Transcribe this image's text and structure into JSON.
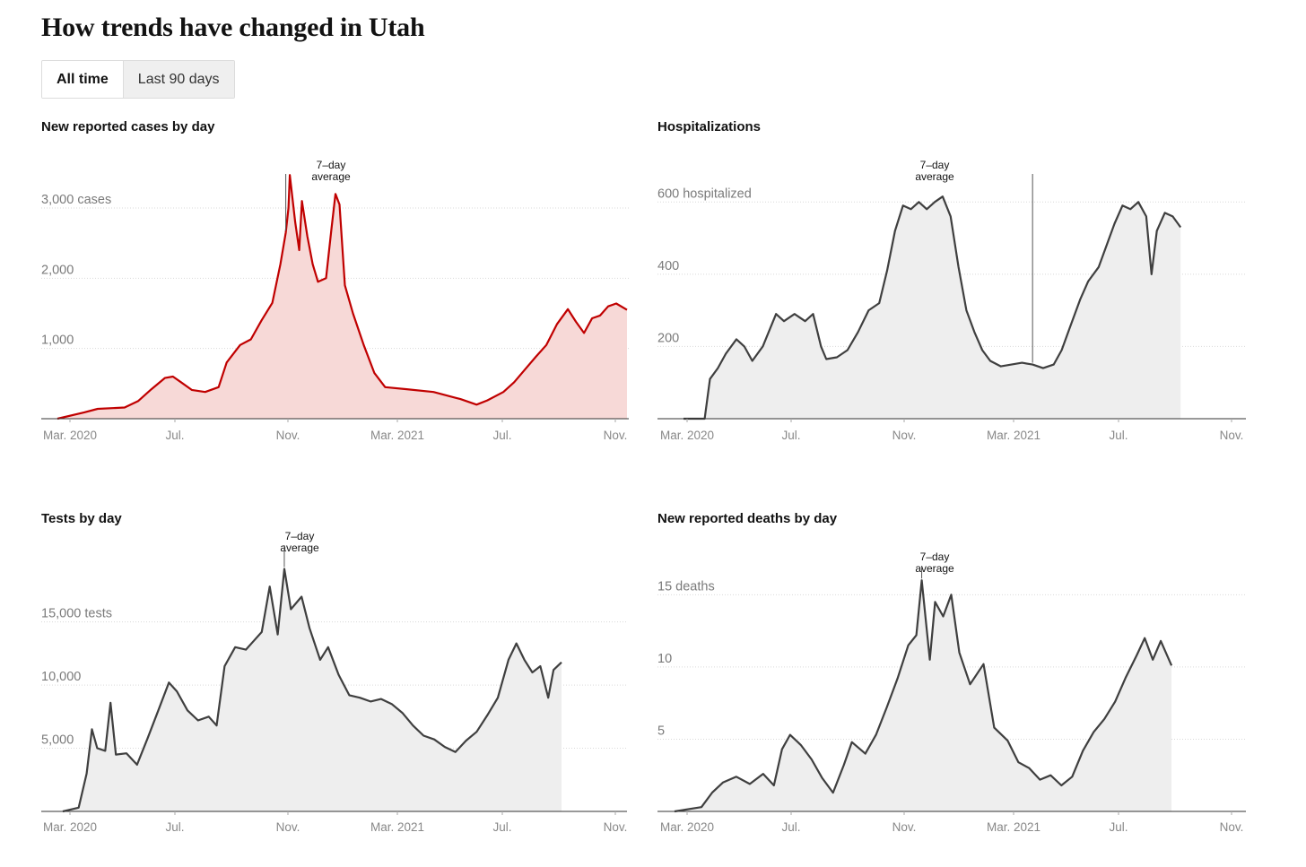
{
  "page": {
    "title": "How trends have changed in Utah",
    "toggle": {
      "all_time": "All time",
      "last_90": "Last 90 days",
      "selected": "All time"
    }
  },
  "colors": {
    "cases_line": "#c00000",
    "cases_fill": "#f7d9d7",
    "gray_line": "#3f3f3f",
    "gray_fill": "#eeeeee",
    "grid": "#d9d9d9",
    "axis": "#333333"
  },
  "chart_data": [
    {
      "id": "cases",
      "type": "area",
      "title": "New reported cases by day",
      "annotation": "7-day average",
      "x_ticks": [
        "Mar. 2020",
        "Jul.",
        "Nov.",
        "Mar. 2021",
        "Jul.",
        "Nov."
      ],
      "y_ticks": [
        {
          "value": 1000,
          "label": "1,000"
        },
        {
          "value": 2000,
          "label": "2,000"
        },
        {
          "value": 3000,
          "label": "3,000 cases"
        }
      ],
      "ylim": [
        0,
        3600
      ],
      "xlim": [
        0,
        21.2
      ],
      "points": [
        [
          0,
          0
        ],
        [
          1,
          90
        ],
        [
          1.5,
          140
        ],
        [
          2.5,
          160
        ],
        [
          3,
          250
        ],
        [
          3.5,
          420
        ],
        [
          4,
          580
        ],
        [
          4.3,
          600
        ],
        [
          4.6,
          520
        ],
        [
          5,
          410
        ],
        [
          5.5,
          380
        ],
        [
          6,
          450
        ],
        [
          6.3,
          800
        ],
        [
          6.8,
          1050
        ],
        [
          7.2,
          1130
        ],
        [
          7.6,
          1400
        ],
        [
          8,
          1650
        ],
        [
          8.3,
          2200
        ],
        [
          8.5,
          2650
        ],
        [
          8.6,
          3000
        ],
        [
          8.65,
          3470
        ],
        [
          8.85,
          2800
        ],
        [
          9.0,
          2400
        ],
        [
          9.1,
          3100
        ],
        [
          9.3,
          2600
        ],
        [
          9.5,
          2200
        ],
        [
          9.7,
          1950
        ],
        [
          10.0,
          2000
        ],
        [
          10.2,
          2700
        ],
        [
          10.35,
          3200
        ],
        [
          10.5,
          3050
        ],
        [
          10.7,
          1900
        ],
        [
          11,
          1500
        ],
        [
          11.4,
          1050
        ],
        [
          11.8,
          650
        ],
        [
          12.2,
          450
        ],
        [
          13,
          420
        ],
        [
          14,
          380
        ],
        [
          15,
          280
        ],
        [
          15.6,
          200
        ],
        [
          16,
          260
        ],
        [
          16.6,
          380
        ],
        [
          17,
          520
        ],
        [
          17.4,
          700
        ],
        [
          17.8,
          880
        ],
        [
          18.2,
          1050
        ],
        [
          18.6,
          1350
        ],
        [
          19,
          1560
        ],
        [
          19.3,
          1380
        ],
        [
          19.6,
          1220
        ],
        [
          19.9,
          1430
        ],
        [
          20.2,
          1470
        ],
        [
          20.5,
          1600
        ],
        [
          20.8,
          1640
        ],
        [
          21.2,
          1550
        ]
      ]
    },
    {
      "id": "hospitalizations",
      "type": "area",
      "title": "Hospitalizations",
      "annotation": "7-day average",
      "x_ticks": [
        "Mar. 2020",
        "Jul.",
        "Nov.",
        "Mar. 2021",
        "Jul.",
        "Nov."
      ],
      "y_ticks": [
        {
          "value": 200,
          "label": "200"
        },
        {
          "value": 400,
          "label": "400"
        },
        {
          "value": 600,
          "label": "600 hospitalized"
        }
      ],
      "ylim": [
        0,
        700
      ],
      "xlim": [
        0,
        21.2
      ],
      "points": [
        [
          0,
          0
        ],
        [
          0.8,
          0
        ],
        [
          1,
          110
        ],
        [
          1.3,
          140
        ],
        [
          1.6,
          180
        ],
        [
          2,
          220
        ],
        [
          2.3,
          200
        ],
        [
          2.6,
          160
        ],
        [
          3,
          200
        ],
        [
          3.5,
          290
        ],
        [
          3.8,
          270
        ],
        [
          4.2,
          290
        ],
        [
          4.6,
          270
        ],
        [
          4.9,
          290
        ],
        [
          5.2,
          200
        ],
        [
          5.4,
          165
        ],
        [
          5.8,
          170
        ],
        [
          6.2,
          190
        ],
        [
          6.6,
          240
        ],
        [
          7,
          300
        ],
        [
          7.4,
          320
        ],
        [
          7.7,
          410
        ],
        [
          8,
          520
        ],
        [
          8.3,
          590
        ],
        [
          8.6,
          580
        ],
        [
          8.9,
          600
        ],
        [
          9.2,
          580
        ],
        [
          9.5,
          600
        ],
        [
          9.8,
          615
        ],
        [
          10.1,
          560
        ],
        [
          10.4,
          420
        ],
        [
          10.7,
          300
        ],
        [
          11,
          240
        ],
        [
          11.3,
          190
        ],
        [
          11.6,
          160
        ],
        [
          12,
          145
        ],
        [
          12.4,
          150
        ],
        [
          12.8,
          155
        ],
        [
          13.2,
          150
        ],
        [
          13.6,
          140
        ],
        [
          14,
          150
        ],
        [
          14.3,
          190
        ],
        [
          14.6,
          250
        ],
        [
          15,
          330
        ],
        [
          15.3,
          380
        ],
        [
          15.7,
          420
        ],
        [
          16,
          480
        ],
        [
          16.3,
          540
        ],
        [
          16.6,
          590
        ],
        [
          16.9,
          580
        ],
        [
          17.2,
          600
        ],
        [
          17.5,
          560
        ],
        [
          17.7,
          400
        ],
        [
          17.9,
          520
        ],
        [
          18.2,
          570
        ],
        [
          18.5,
          560
        ],
        [
          18.8,
          530
        ]
      ]
    },
    {
      "id": "tests",
      "type": "area",
      "title": "Tests by day",
      "annotation": "7-day average",
      "x_ticks": [
        "Mar. 2020",
        "Jul.",
        "Nov.",
        "Mar. 2021",
        "Jul.",
        "Nov."
      ],
      "y_ticks": [
        {
          "value": 5000,
          "label": "5,000"
        },
        {
          "value": 10000,
          "label": "10,000"
        },
        {
          "value": 15000,
          "label": "15,000 tests"
        }
      ],
      "ylim": [
        0,
        22000
      ],
      "xlim": [
        0,
        21.2
      ],
      "points": [
        [
          0,
          0
        ],
        [
          0.6,
          300
        ],
        [
          0.9,
          3000
        ],
        [
          1.1,
          6500
        ],
        [
          1.3,
          5000
        ],
        [
          1.6,
          4800
        ],
        [
          1.8,
          8600
        ],
        [
          2,
          4500
        ],
        [
          2.4,
          4600
        ],
        [
          2.8,
          3700
        ],
        [
          3.2,
          5800
        ],
        [
          3.6,
          8000
        ],
        [
          4,
          10200
        ],
        [
          4.3,
          9500
        ],
        [
          4.7,
          8000
        ],
        [
          5.1,
          7200
        ],
        [
          5.5,
          7500
        ],
        [
          5.8,
          6800
        ],
        [
          6.1,
          11500
        ],
        [
          6.5,
          13000
        ],
        [
          6.9,
          12800
        ],
        [
          7.2,
          13500
        ],
        [
          7.5,
          14200
        ],
        [
          7.8,
          17800
        ],
        [
          8.1,
          14000
        ],
        [
          8.35,
          19200
        ],
        [
          8.6,
          16000
        ],
        [
          9,
          17000
        ],
        [
          9.3,
          14500
        ],
        [
          9.7,
          12000
        ],
        [
          10,
          13000
        ],
        [
          10.4,
          10800
        ],
        [
          10.8,
          9200
        ],
        [
          11.2,
          9000
        ],
        [
          11.6,
          8700
        ],
        [
          12,
          8900
        ],
        [
          12.4,
          8500
        ],
        [
          12.8,
          7800
        ],
        [
          13.2,
          6800
        ],
        [
          13.6,
          6000
        ],
        [
          14,
          5700
        ],
        [
          14.4,
          5100
        ],
        [
          14.8,
          4700
        ],
        [
          15.2,
          5600
        ],
        [
          15.6,
          6300
        ],
        [
          16,
          7600
        ],
        [
          16.4,
          9000
        ],
        [
          16.8,
          12000
        ],
        [
          17.1,
          13300
        ],
        [
          17.4,
          12000
        ],
        [
          17.7,
          11000
        ],
        [
          18,
          11500
        ],
        [
          18.3,
          9000
        ],
        [
          18.5,
          11200
        ],
        [
          18.8,
          11800
        ]
      ]
    },
    {
      "id": "deaths",
      "type": "area",
      "title": "New reported deaths by day",
      "annotation": "7-day average",
      "x_ticks": [
        "Mar. 2020",
        "Jul.",
        "Nov.",
        "Mar. 2021",
        "Jul.",
        "Nov."
      ],
      "y_ticks": [
        {
          "value": 5,
          "label": "5"
        },
        {
          "value": 10,
          "label": "10"
        },
        {
          "value": 15,
          "label": "15 deaths"
        }
      ],
      "ylim": [
        0,
        18
      ],
      "xlim": [
        0,
        21.2
      ],
      "points": [
        [
          0,
          0
        ],
        [
          1,
          0.3
        ],
        [
          1.4,
          1.3
        ],
        [
          1.8,
          2.0
        ],
        [
          2.3,
          2.4
        ],
        [
          2.8,
          1.9
        ],
        [
          3.3,
          2.6
        ],
        [
          3.7,
          1.8
        ],
        [
          4,
          4.3
        ],
        [
          4.3,
          5.3
        ],
        [
          4.7,
          4.6
        ],
        [
          5.1,
          3.6
        ],
        [
          5.5,
          2.3
        ],
        [
          5.9,
          1.3
        ],
        [
          6.3,
          3.2
        ],
        [
          6.6,
          4.8
        ],
        [
          7.1,
          4.0
        ],
        [
          7.5,
          5.3
        ],
        [
          7.9,
          7.2
        ],
        [
          8.3,
          9.2
        ],
        [
          8.7,
          11.5
        ],
        [
          9.0,
          12.2
        ],
        [
          9.2,
          16.0
        ],
        [
          9.5,
          10.5
        ],
        [
          9.7,
          14.5
        ],
        [
          10.0,
          13.5
        ],
        [
          10.3,
          15.0
        ],
        [
          10.6,
          11.0
        ],
        [
          11.0,
          8.8
        ],
        [
          11.5,
          10.2
        ],
        [
          11.9,
          5.8
        ],
        [
          12.4,
          4.9
        ],
        [
          12.8,
          3.4
        ],
        [
          13.2,
          3.0
        ],
        [
          13.6,
          2.2
        ],
        [
          14,
          2.5
        ],
        [
          14.4,
          1.8
        ],
        [
          14.8,
          2.4
        ],
        [
          15.2,
          4.2
        ],
        [
          15.6,
          5.5
        ],
        [
          16,
          6.4
        ],
        [
          16.4,
          7.6
        ],
        [
          16.8,
          9.3
        ],
        [
          17.2,
          10.8
        ],
        [
          17.5,
          12.0
        ],
        [
          17.8,
          10.5
        ],
        [
          18.1,
          11.8
        ],
        [
          18.5,
          10.1
        ]
      ]
    }
  ]
}
